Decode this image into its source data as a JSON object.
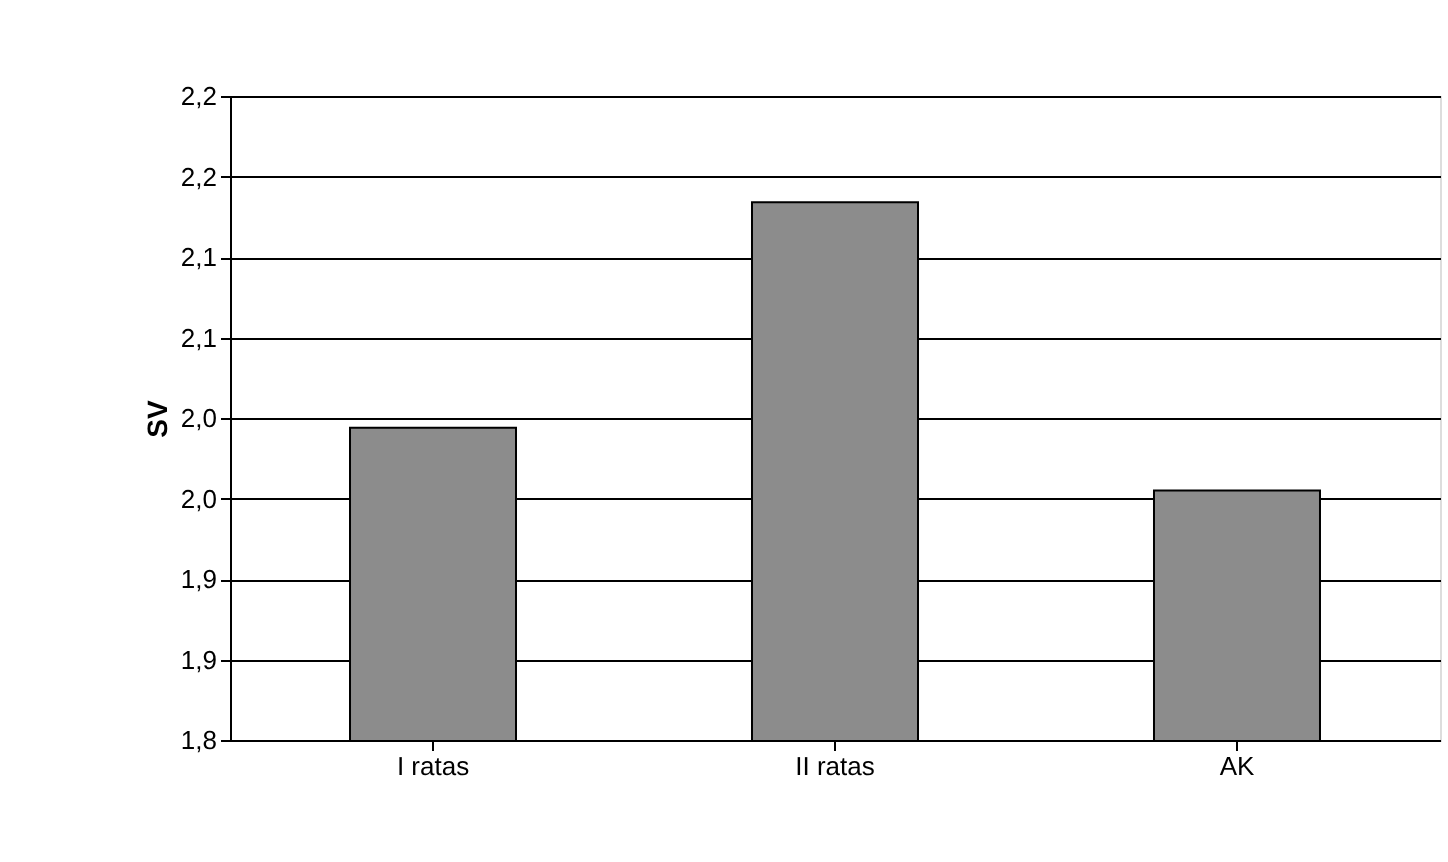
{
  "chart_data": {
    "type": "bar",
    "ylabel": "SV",
    "categories": [
      "I ratas",
      "II ratas",
      "AK"
    ],
    "values": [
      1.994,
      2.134,
      1.955
    ],
    "color": "#8c8c8c",
    "ylim": [
      1.8,
      2.2
    ],
    "yticks": [
      {
        "value": 1.8,
        "label": "1,8"
      },
      {
        "value": 1.85,
        "label": "1,9"
      },
      {
        "value": 1.9,
        "label": "1,9"
      },
      {
        "value": 1.95,
        "label": "2,0"
      },
      {
        "value": 2.0,
        "label": "2,0"
      },
      {
        "value": 2.05,
        "label": "2,1"
      },
      {
        "value": 2.1,
        "label": "2,1"
      },
      {
        "value": 2.15,
        "label": "2,2"
      },
      {
        "value": 2.2,
        "label": "2,2"
      }
    ],
    "grid": "y"
  }
}
